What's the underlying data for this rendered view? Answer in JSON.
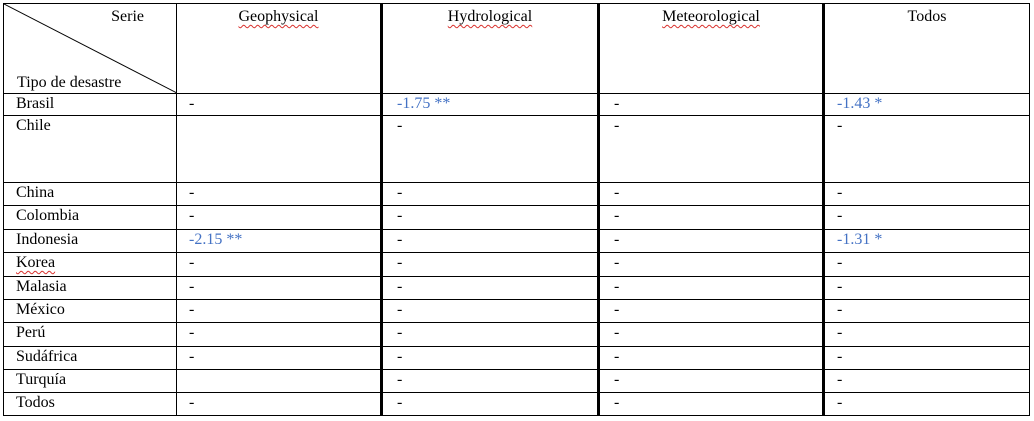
{
  "table": {
    "corner": {
      "top_label": "Serie",
      "bottom_label": "Tipo de desastre"
    },
    "columns": [
      "Geophysical",
      "Hydrological",
      "Meteorological",
      "Todos"
    ],
    "rows": [
      {
        "label": "Brasil",
        "cells": [
          "-",
          "-1.75 **",
          "-",
          "-1.43 *"
        ]
      },
      {
        "label": "Chile",
        "cells": [
          "",
          "-",
          "-",
          "-"
        ]
      },
      {
        "label": "China",
        "cells": [
          "-",
          "-",
          "-",
          "-"
        ]
      },
      {
        "label": "Colombia",
        "cells": [
          "-",
          "-",
          "-",
          "-"
        ]
      },
      {
        "label": "Indonesia",
        "cells": [
          "-2.15 **",
          "-",
          "-",
          "-1.31 *"
        ]
      },
      {
        "label": "Korea",
        "cells": [
          "-",
          "-",
          "-",
          "-"
        ]
      },
      {
        "label": "Malasia",
        "cells": [
          "-",
          "-",
          "-",
          "-"
        ]
      },
      {
        "label": "México",
        "cells": [
          "-",
          "-",
          "-",
          "-"
        ]
      },
      {
        "label": "Perú",
        "cells": [
          "-",
          "-",
          "-",
          "-"
        ]
      },
      {
        "label": "Sudáfrica",
        "cells": [
          "-",
          "-",
          "-",
          "-"
        ]
      },
      {
        "label": "Turquía",
        "cells": [
          "",
          "-",
          "-",
          "-"
        ]
      },
      {
        "label": "Todos",
        "cells": [
          "-",
          "-",
          "-",
          "-"
        ]
      }
    ]
  },
  "colors": {
    "significant_value": "#4472c4",
    "spellcheck_underline": "#d8302c"
  }
}
